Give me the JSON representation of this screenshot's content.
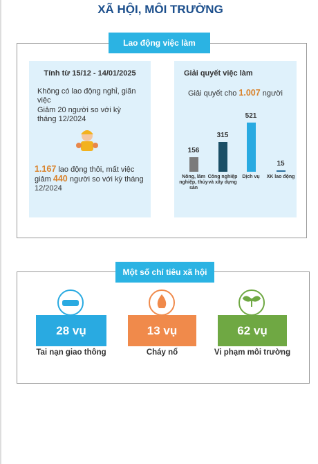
{
  "header": {
    "title": "XÃ HỘI, MÔI TRƯỜNG"
  },
  "labor": {
    "title": "Lao động việc làm",
    "period": "Tính từ 15/12 - 14/01/2025",
    "line1": "Không có lao động nghỉ, giãn việc",
    "line2": "Giảm 20 người so với kỳ tháng 12/2024",
    "loss_value": "1.167",
    "loss_text": "lao động thôi, mất việc",
    "loss_pre": "giảm",
    "loss_diff": "440",
    "loss_post": "người so với kỳ tháng 12/2024"
  },
  "chart_data": {
    "type": "bar",
    "title": "Giải quyết việc làm",
    "subtitle_pre": "Giải quyết cho",
    "subtitle_value": "1.007",
    "subtitle_post": "người",
    "categories": [
      "Nông, lâm nghiệp, thủy sản",
      "Công nghiệp và xây dựng",
      "Dịch vụ",
      "XK lao động"
    ],
    "values": [
      156,
      315,
      521,
      15
    ],
    "colors": [
      "#7b7b7b",
      "#1b4f66",
      "#29aae1",
      "#2b6f9e"
    ]
  },
  "social": {
    "title": "Một số chỉ tiêu xã hội",
    "items": [
      {
        "value": "28 vụ",
        "label": "Tai nạn giao thông"
      },
      {
        "value": "13 vụ",
        "label": "Cháy nổ"
      },
      {
        "value": "62 vụ",
        "label": "Vi phạm môi trường"
      }
    ]
  }
}
